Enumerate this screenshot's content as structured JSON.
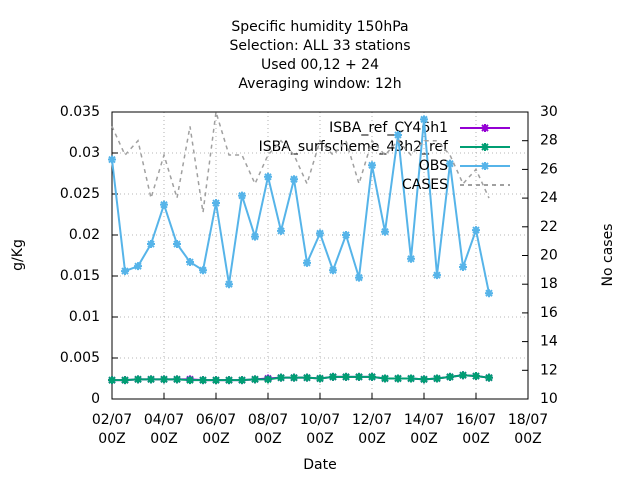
{
  "chart_data": {
    "type": "line",
    "title": [
      "Specific humidity 150hPa",
      "Selection: ALL      33 stations",
      "Used  00,12 + 24",
      "Averaging window: 12h"
    ],
    "xlabel": "Date",
    "ylabel": "g/Kg",
    "y2label": "No cases",
    "x": [
      "02/07 00Z",
      "02/07 12Z",
      "03/07 00Z",
      "03/07 12Z",
      "04/07 00Z",
      "04/07 12Z",
      "05/07 00Z",
      "05/07 12Z",
      "06/07 00Z",
      "06/07 12Z",
      "07/07 00Z",
      "07/07 12Z",
      "08/07 00Z",
      "08/07 12Z",
      "09/07 00Z",
      "09/07 12Z",
      "10/07 00Z",
      "10/07 12Z",
      "11/07 00Z",
      "11/07 12Z",
      "12/07 00Z",
      "12/07 12Z",
      "13/07 00Z",
      "13/07 12Z",
      "14/07 00Z",
      "14/07 12Z",
      "15/07 00Z",
      "15/07 12Z",
      "16/07 00Z",
      "16/07 12Z"
    ],
    "xlim": [
      "02/07 00Z",
      "18/07 00Z"
    ],
    "xticks": [
      "02/07 00Z",
      "04/07 00Z",
      "06/07 00Z",
      "08/07 00Z",
      "10/07 00Z",
      "12/07 00Z",
      "14/07 00Z",
      "16/07 00Z",
      "18/07 00Z"
    ],
    "ylim": [
      0,
      0.035
    ],
    "yticks": [
      0,
      0.005,
      0.01,
      0.015,
      0.02,
      0.025,
      0.03,
      0.035
    ],
    "y2lim": [
      10,
      30
    ],
    "y2ticks": [
      10,
      12,
      14,
      16,
      18,
      20,
      22,
      24,
      26,
      28,
      30
    ],
    "grid": true,
    "legend": "top-right",
    "series": [
      {
        "name": "ISBA_ref_CY46h1",
        "color": "#9400d3",
        "style": "linespoints",
        "values": [
          0.0023,
          0.0023,
          0.0024,
          0.0024,
          0.0024,
          0.0024,
          0.0024,
          0.0023,
          0.0023,
          0.0023,
          0.0023,
          0.0024,
          0.0025,
          0.0026,
          0.0026,
          0.0026,
          0.0025,
          0.0027,
          0.0027,
          0.0027,
          0.0027,
          0.0025,
          0.0025,
          0.0025,
          0.0024,
          0.0025,
          0.0027,
          0.0029,
          0.0028,
          0.0026
        ]
      },
      {
        "name": "ISBA_surfscheme_43h2_ref",
        "color": "#009e73",
        "style": "linespoints",
        "values": [
          0.0023,
          0.0023,
          0.0024,
          0.0024,
          0.0024,
          0.0024,
          0.0023,
          0.0023,
          0.0023,
          0.0023,
          0.0023,
          0.0024,
          0.0024,
          0.0026,
          0.0026,
          0.0026,
          0.0025,
          0.0027,
          0.0027,
          0.0027,
          0.0027,
          0.0025,
          0.0025,
          0.0025,
          0.0024,
          0.0025,
          0.0027,
          0.0029,
          0.0028,
          0.0026
        ]
      },
      {
        "name": "OBS",
        "color": "#56b4e9",
        "style": "linespoints",
        "values": [
          0.0292,
          0.0156,
          0.0162,
          0.0189,
          0.0237,
          0.0189,
          0.0167,
          0.0157,
          0.0239,
          0.014,
          0.0248,
          0.0198,
          0.0271,
          0.0205,
          0.0268,
          0.0166,
          0.0202,
          0.0157,
          0.02,
          0.0148,
          0.0285,
          0.0204,
          0.0322,
          0.0171,
          0.0341,
          0.0151,
          0.0287,
          0.0161,
          0.0206,
          0.0129
        ]
      },
      {
        "name": "CASES",
        "color": "#a0a0a0",
        "style": "dashed",
        "axis": "y2",
        "values": [
          29,
          27,
          28,
          24,
          27,
          24,
          29,
          23,
          30,
          27,
          27,
          25,
          27,
          28,
          27,
          25,
          28,
          27,
          28,
          25,
          28,
          27,
          28,
          27,
          28,
          28,
          27,
          25,
          26,
          24
        ]
      }
    ]
  }
}
